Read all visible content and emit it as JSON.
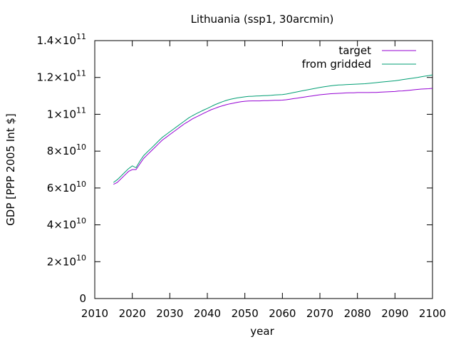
{
  "chart_data": {
    "type": "line",
    "title": "Lithuania (ssp1, 30arcmin)",
    "xlabel": "year",
    "ylabel": "GDP [PPP 2005 Int $]",
    "xlim": [
      2010,
      2100
    ],
    "ylim": [
      0,
      140000000000
    ],
    "xticks": [
      "2010",
      "2020",
      "2030",
      "2040",
      "2050",
      "2060",
      "2070",
      "2080",
      "2090",
      "2100"
    ],
    "yticks": [
      {
        "value": 0,
        "mantissa": "0",
        "exponent": ""
      },
      {
        "value": 20000000000,
        "mantissa": "2×10",
        "exponent": "10"
      },
      {
        "value": 40000000000,
        "mantissa": "4×10",
        "exponent": "10"
      },
      {
        "value": 60000000000,
        "mantissa": "6×10",
        "exponent": "10"
      },
      {
        "value": 80000000000,
        "mantissa": "8×10",
        "exponent": "10"
      },
      {
        "value": 100000000000,
        "mantissa": "1×10",
        "exponent": "11"
      },
      {
        "value": 120000000000,
        "mantissa": "1.2×10",
        "exponent": "11"
      },
      {
        "value": 140000000000,
        "mantissa": "1.4×10",
        "exponent": "11"
      }
    ],
    "legend_position": "top-right",
    "grid": false,
    "x": [
      2015,
      2016,
      2017,
      2018,
      2019,
      2020,
      2021,
      2022,
      2023,
      2024,
      2025,
      2026,
      2027,
      2028,
      2029,
      2030,
      2031,
      2032,
      2033,
      2034,
      2035,
      2036,
      2037,
      2038,
      2039,
      2040,
      2041,
      2042,
      2043,
      2044,
      2045,
      2046,
      2047,
      2048,
      2049,
      2050,
      2051,
      2052,
      2053,
      2054,
      2055,
      2056,
      2057,
      2058,
      2059,
      2060,
      2061,
      2062,
      2063,
      2064,
      2065,
      2066,
      2067,
      2068,
      2069,
      2070,
      2071,
      2072,
      2073,
      2074,
      2075,
      2076,
      2077,
      2078,
      2079,
      2080,
      2081,
      2082,
      2083,
      2084,
      2085,
      2086,
      2087,
      2088,
      2089,
      2090,
      2091,
      2092,
      2093,
      2094,
      2095,
      2096,
      2097,
      2098,
      2099,
      2100
    ],
    "series": [
      {
        "name": "target",
        "color": "#9400d3",
        "values": [
          62000000000.0,
          63000000000.0,
          65000000000.0,
          67000000000.0,
          69000000000.0,
          70000000000.0,
          70000000000.0,
          73000000000.0,
          76000000000.0,
          78000000000.0,
          80000000000.0,
          82000000000.0,
          84000000000.0,
          86000000000.0,
          87500000000.0,
          89000000000.0,
          90500000000.0,
          92000000000.0,
          93500000000.0,
          95000000000.0,
          96200000000.0,
          97500000000.0,
          98500000000.0,
          99500000000.0,
          100500000000.0,
          101500000000.0,
          102500000000.0,
          103200000000.0,
          104000000000.0,
          104600000000.0,
          105200000000.0,
          105700000000.0,
          106100000000.0,
          106500000000.0,
          106800000000.0,
          107100000000.0,
          107200000000.0,
          107300000000.0,
          107300000000.0,
          107300000000.0,
          107400000000.0,
          107400000000.0,
          107500000000.0,
          107600000000.0,
          107600000000.0,
          107700000000.0,
          107900000000.0,
          108200000000.0,
          108500000000.0,
          108800000000.0,
          109100000000.0,
          109400000000.0,
          109700000000.0,
          110000000000.0,
          110300000000.0,
          110600000000.0,
          110800000000.0,
          111000000000.0,
          111200000000.0,
          111300000000.0,
          111400000000.0,
          111500000000.0,
          111600000000.0,
          111700000000.0,
          111700000000.0,
          111800000000.0,
          111800000000.0,
          111800000000.0,
          111800000000.0,
          111900000000.0,
          111900000000.0,
          112000000000.0,
          112100000000.0,
          112200000000.0,
          112300000000.0,
          112400000000.0,
          112600000000.0,
          112700000000.0,
          112900000000.0,
          113100000000.0,
          113300000000.0,
          113500000000.0,
          113700000000.0,
          113800000000.0,
          113900000000.0,
          114100000000.0
        ]
      },
      {
        "name": "from gridded",
        "color": "#009e73",
        "values": [
          63000000000.0,
          64500000000.0,
          66500000000.0,
          68500000000.0,
          70500000000.0,
          72000000000.0,
          71000000000.0,
          74500000000.0,
          77500000000.0,
          79500000000.0,
          81500000000.0,
          83500000000.0,
          85500000000.0,
          87500000000.0,
          89000000000.0,
          90500000000.0,
          92000000000.0,
          93500000000.0,
          95000000000.0,
          96500000000.0,
          98000000000.0,
          99200000000.0,
          100300000000.0,
          101300000000.0,
          102300000000.0,
          103200000000.0,
          104200000000.0,
          105200000000.0,
          106000000000.0,
          106800000000.0,
          107500000000.0,
          108100000000.0,
          108500000000.0,
          108900000000.0,
          109200000000.0,
          109500000000.0,
          109700000000.0,
          109800000000.0,
          109900000000.0,
          110000000000.0,
          110100000000.0,
          110200000000.0,
          110300000000.0,
          110500000000.0,
          110600000000.0,
          110700000000.0,
          111000000000.0,
          111400000000.0,
          111800000000.0,
          112200000000.0,
          112600000000.0,
          113000000000.0,
          113400000000.0,
          113800000000.0,
          114200000000.0,
          114600000000.0,
          114900000000.0,
          115200000000.0,
          115500000000.0,
          115700000000.0,
          115900000000.0,
          116000000000.0,
          116100000000.0,
          116200000000.0,
          116300000000.0,
          116400000000.0,
          116500000000.0,
          116600000000.0,
          116800000000.0,
          117000000000.0,
          117200000000.0,
          117400000000.0,
          117600000000.0,
          117800000000.0,
          118000000000.0,
          118200000000.0,
          118500000000.0,
          118800000000.0,
          119100000000.0,
          119400000000.0,
          119700000000.0,
          120000000000.0,
          120400000000.0,
          120700000000.0,
          121000000000.0,
          121400000000.0
        ]
      }
    ]
  }
}
